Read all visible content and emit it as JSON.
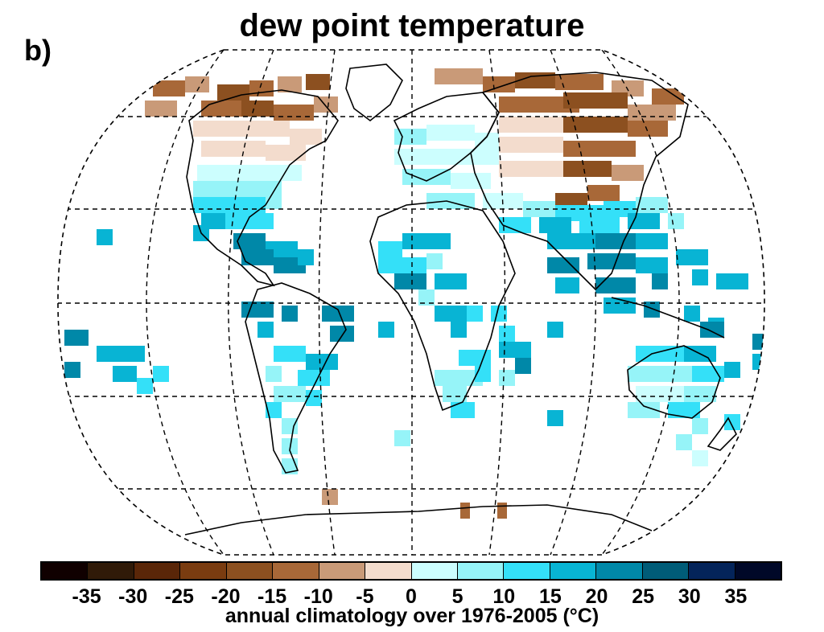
{
  "panel_label": "b)",
  "title": "dew point temperature",
  "colorbar": {
    "label": "annual climatology over 1976-2005 (°C)",
    "ticks": [
      "-35",
      "-30",
      "-25",
      "-20",
      "-15",
      "-10",
      "-5",
      "0",
      "5",
      "10",
      "15",
      "20",
      "25",
      "30",
      "35"
    ],
    "colors": [
      "#100000",
      "#301a08",
      "#5a2608",
      "#7a3c10",
      "#8c5020",
      "#a86838",
      "#c99a78",
      "#f3dccd",
      "#ccfefe",
      "#96f4f8",
      "#34e0f8",
      "#08b4d4",
      "#0088a8",
      "#005c78",
      "#04245a",
      "#000828"
    ]
  },
  "map": {
    "projection": "robinson-like global",
    "grid": "dashed 30° graticule",
    "legend_placement": "bottom"
  }
}
